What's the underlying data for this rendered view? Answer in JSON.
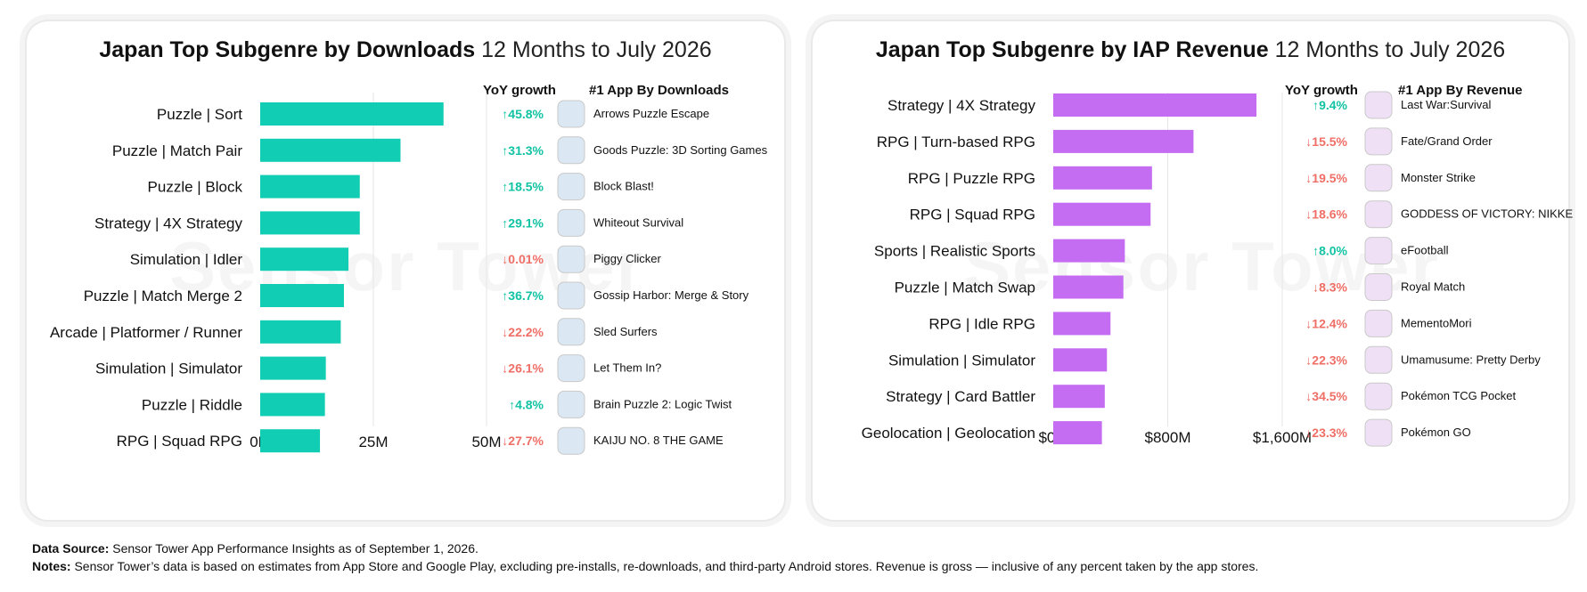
{
  "colors": {
    "downloads_bar": "#11cdb3",
    "revenue_bar": "#c46cf2",
    "growth_up": "#11c3a4",
    "growth_down": "#ef6f67",
    "gridline": "#e6e6e6"
  },
  "watermark": "Sensor Tower",
  "charts": [
    {
      "title_bold": "Japan Top Subgenre by Downloads",
      "title_light": "12 Months to July 2026",
      "growth_header": "YoY growth",
      "app_header": "#1 App By Downloads",
      "x_ticks": [
        "0M",
        "25M",
        "50M"
      ],
      "rows": [
        {
          "growth": "↑45.8%",
          "direction": "up",
          "app": "Arrows  Puzzle Escape",
          "icon": "arrows-puzzle-escape-icon"
        },
        {
          "growth": "↑31.3%",
          "direction": "up",
          "app": "Goods Puzzle: 3D Sorting Games",
          "icon": "goods-puzzle-icon"
        },
        {
          "growth": "↑18.5%",
          "direction": "up",
          "app": "Block Blast!",
          "icon": "block-blast-icon"
        },
        {
          "growth": "↑29.1%",
          "direction": "up",
          "app": "Whiteout Survival",
          "icon": "whiteout-survival-icon"
        },
        {
          "growth": "↓0.01%",
          "direction": "down",
          "app": "Piggy Clicker",
          "icon": "piggy-clicker-icon"
        },
        {
          "growth": "↑36.7%",
          "direction": "up",
          "app": "Gossip Harbor: Merge & Story",
          "icon": "gossip-harbor-icon"
        },
        {
          "growth": "↓22.2%",
          "direction": "down",
          "app": "Sled Surfers",
          "icon": "sled-surfers-icon"
        },
        {
          "growth": "↓26.1%",
          "direction": "down",
          "app": "Let Them In?",
          "icon": "let-them-in-icon"
        },
        {
          "growth": "↑4.8%",
          "direction": "up",
          "app": "Brain Puzzle 2: Logic Twist",
          "icon": "brain-puzzle-icon"
        },
        {
          "growth": "↓27.7%",
          "direction": "down",
          "app": "KAIJU NO. 8 THE GAME",
          "icon": "kaiju-no8-icon"
        }
      ]
    },
    {
      "title_bold": "Japan Top Subgenre by IAP Revenue",
      "title_light": "12 Months to July 2026",
      "growth_header": "YoY growth",
      "app_header": "#1 App By Revenue",
      "x_ticks": [
        "$0M",
        "$800M",
        "$1,600M"
      ],
      "rows": [
        {
          "growth": "↑9.4%",
          "direction": "up",
          "app": "Last War:Survival",
          "icon": "last-war-icon"
        },
        {
          "growth": "↓15.5%",
          "direction": "down",
          "app": "Fate/Grand Order",
          "icon": "fate-grand-order-icon"
        },
        {
          "growth": "↓19.5%",
          "direction": "down",
          "app": "Monster Strike",
          "icon": "monster-strike-icon"
        },
        {
          "growth": "↓18.6%",
          "direction": "down",
          "app": "GODDESS OF VICTORY: NIKKE",
          "icon": "nikke-icon"
        },
        {
          "growth": "↑8.0%",
          "direction": "up",
          "app": "eFootball",
          "icon": "efootball-icon"
        },
        {
          "growth": "↓8.3%",
          "direction": "down",
          "app": "Royal Match",
          "icon": "royal-match-icon"
        },
        {
          "growth": "↓12.4%",
          "direction": "down",
          "app": "MementoMori",
          "icon": "mementomori-icon"
        },
        {
          "growth": "↓22.3%",
          "direction": "down",
          "app": "Umamusume: Pretty Derby",
          "icon": "umamusume-icon"
        },
        {
          "growth": "↓34.5%",
          "direction": "down",
          "app": "Pokémon TCG Pocket",
          "icon": "pokemon-tcg-pocket-icon"
        },
        {
          "growth": "↓23.3%",
          "direction": "down",
          "app": "Pokémon GO",
          "icon": "pokemon-go-icon"
        }
      ]
    }
  ],
  "chart_data": [
    {
      "type": "bar",
      "orientation": "horizontal",
      "title": "Japan Top Subgenre by Downloads 12 Months to July 2026",
      "categories": [
        "Puzzle | Sort",
        "Puzzle | Match Pair",
        "Puzzle | Block",
        "Strategy | 4X Strategy",
        "Simulation | Idler",
        "Puzzle | Match Merge 2",
        "Arcade | Platformer / Runner",
        "Simulation | Simulator",
        "Puzzle | Riddle",
        "RPG | Squad RPG"
      ],
      "values": [
        40.5,
        31,
        22,
        22,
        19.5,
        18.5,
        17.8,
        14.5,
        14.3,
        13.2
      ],
      "unit": "M downloads",
      "xlim": [
        0,
        50
      ],
      "x_ticks": [
        0,
        25,
        50
      ],
      "grid": true
    },
    {
      "type": "bar",
      "orientation": "horizontal",
      "title": "Japan Top Subgenre by IAP Revenue 12 Months to July 2026",
      "categories": [
        "Strategy | 4X Strategy",
        "RPG | Turn-based RPG",
        "RPG | Puzzle RPG",
        "RPG | Squad RPG",
        "Sports | Realistic Sports",
        "Puzzle | Match Swap",
        "RPG | Idle RPG",
        "Simulation | Simulator",
        "Strategy | Card Battler",
        "Geolocation | Geolocation"
      ],
      "values": [
        1420,
        980,
        690,
        680,
        500,
        490,
        400,
        375,
        360,
        340
      ],
      "unit": "$M",
      "xlim": [
        0,
        1600
      ],
      "x_ticks": [
        0,
        800,
        1600
      ],
      "grid": true
    }
  ],
  "footer": {
    "source_label": "Data Source:",
    "source_text": "Sensor Tower App Performance Insights as of September 1, 2026.",
    "notes_label": "Notes:",
    "notes_text": "Sensor Tower’s data is based on estimates from App Store and Google Play, excluding pre-installs, re-downloads, and third-party Android stores. Revenue is gross — inclusive of any percent taken by the app stores."
  }
}
